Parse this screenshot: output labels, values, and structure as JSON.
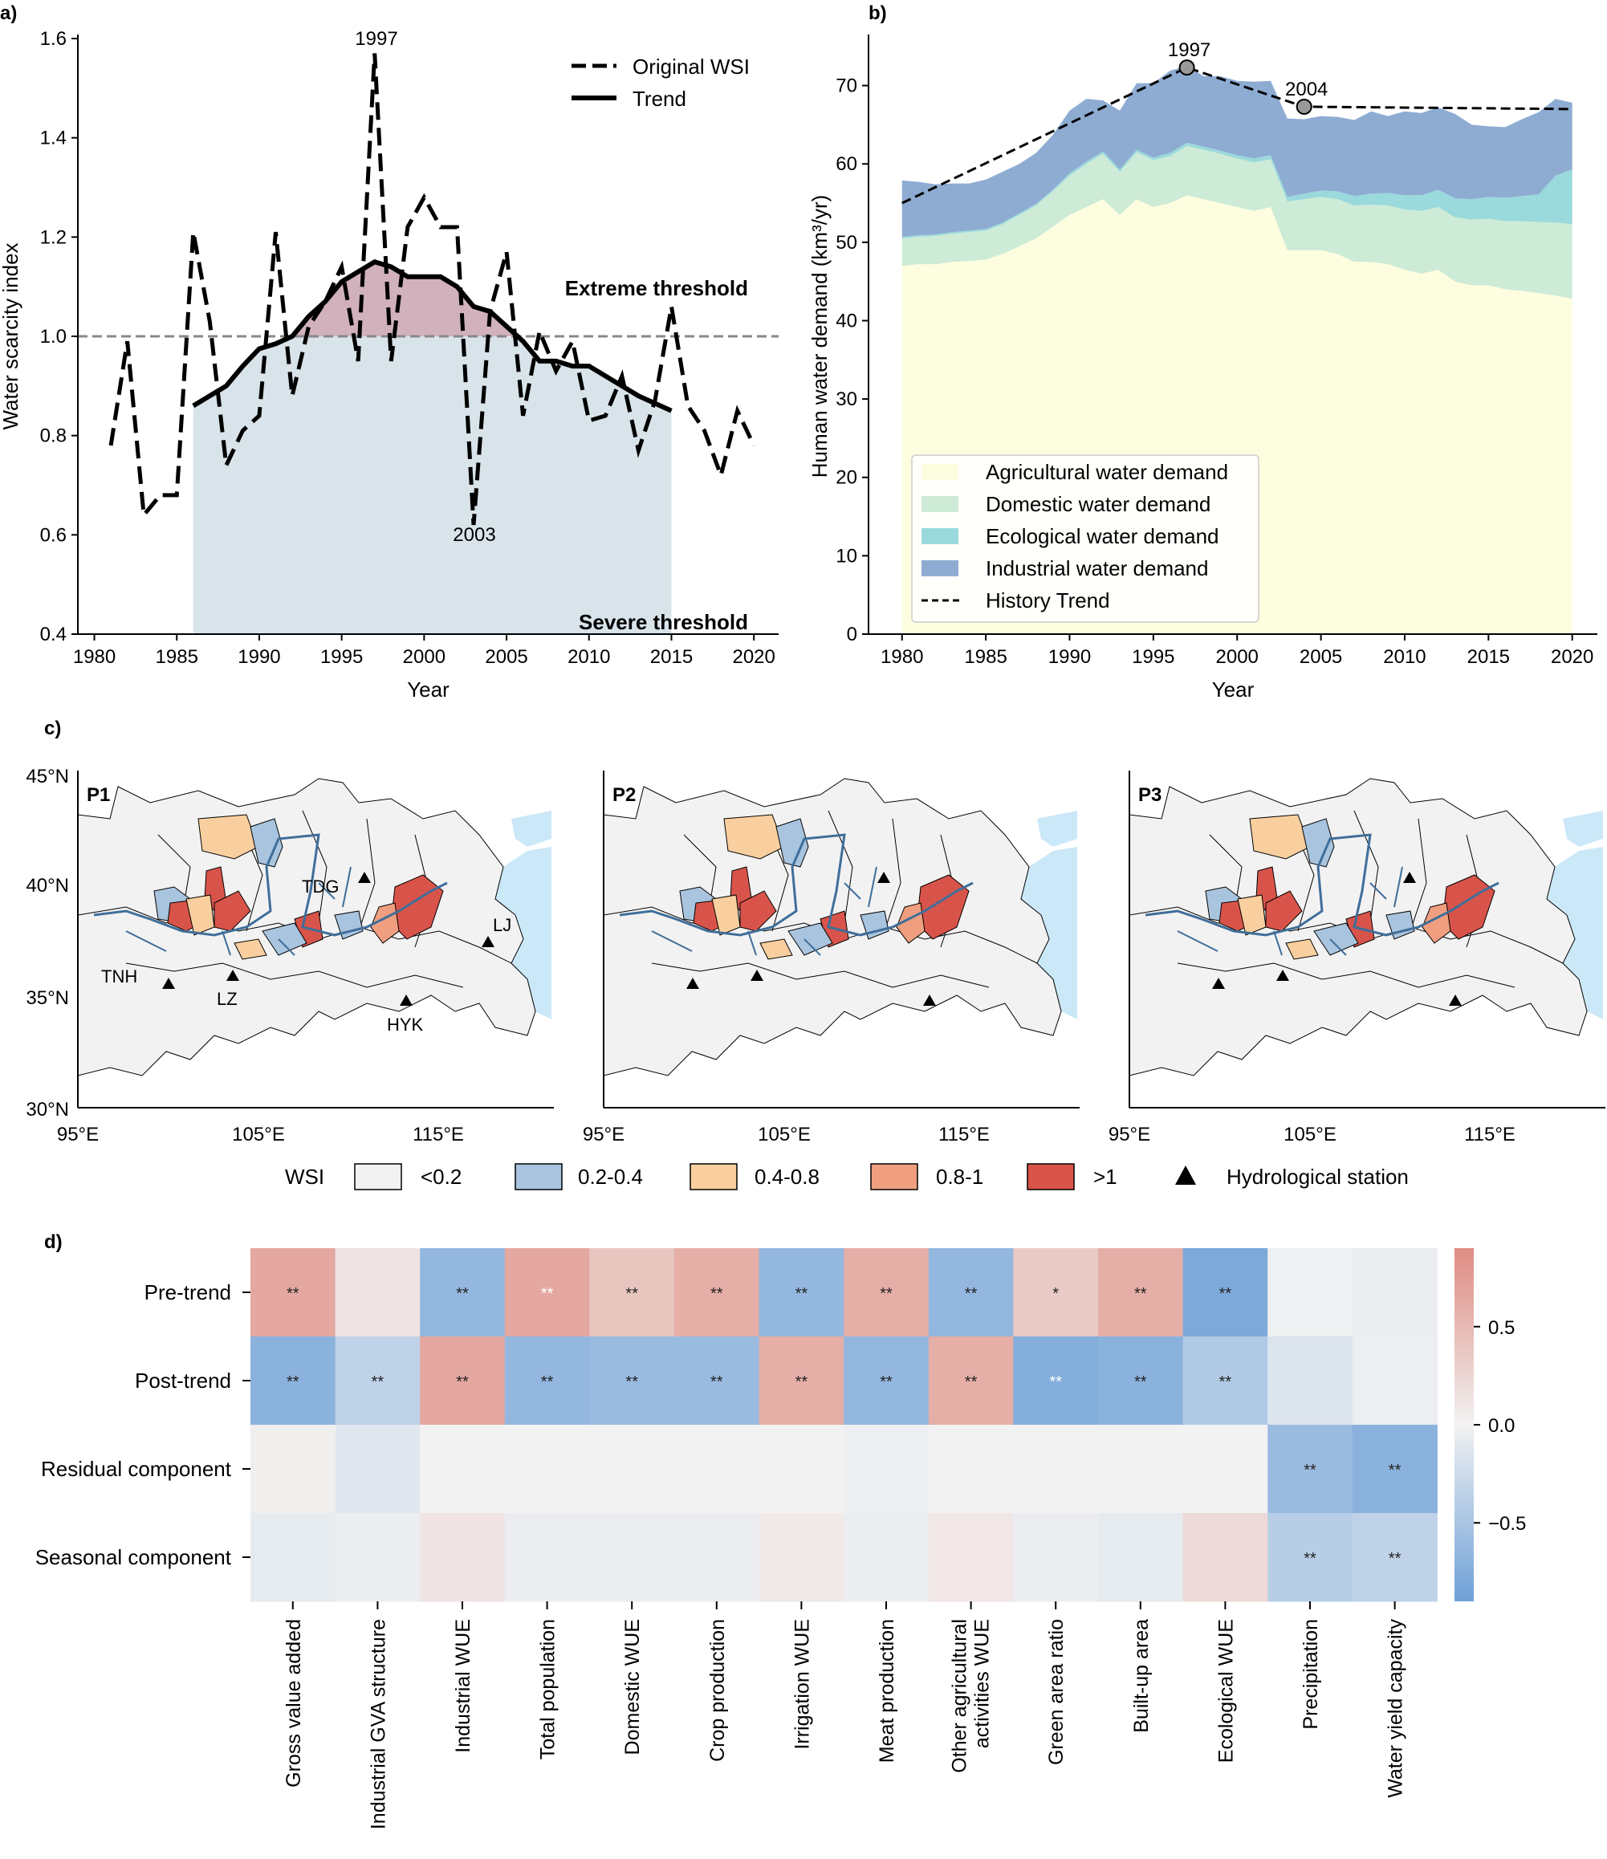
{
  "panels": {
    "a": "a)",
    "b": "b)",
    "c": "c)",
    "d": "d)"
  },
  "colors": {
    "agri": "#fdfde0",
    "domestic": "#cdebd6",
    "ecological": "#9ad9dc",
    "industrial": "#8eacd2",
    "trend_fill_above": "#d1b2bc",
    "trend_fill_below": "#d8e3ea",
    "map_low": "#f2f2f2",
    "map_02_04": "#a9c4de",
    "map_04_08": "#f9cf9f",
    "map_08_1": "#ef9f80",
    "map_gt1": "#d8544a",
    "sea": "#cbe8f8",
    "river": "#3f6e9a"
  },
  "chart_data": [
    {
      "id": "a",
      "type": "line",
      "xlabel": "Year",
      "ylabel": "Water scarcity index",
      "xlim": [
        1979,
        2021.5
      ],
      "ylim": [
        0.4,
        1.6
      ],
      "xticks": [
        1980,
        1985,
        1990,
        1995,
        2000,
        2005,
        2010,
        2015,
        2020
      ],
      "yticks": [
        "0.4",
        "0.6",
        "0.8",
        "1.0",
        "1.2",
        "1.4",
        "1.6"
      ],
      "threshold_value": 1.0,
      "threshold_labels": {
        "extreme": "Extreme threshold",
        "severe": "Severe threshold"
      },
      "annotations": [
        {
          "text": "1997",
          "x": 1997,
          "y": 1.58
        },
        {
          "text": "2003",
          "x": 2003,
          "y": 0.61
        }
      ],
      "legend": {
        "original": "Original WSI",
        "trend": "Trend"
      },
      "series": [
        {
          "name": "Original WSI",
          "x": [
            1981,
            1982,
            1983,
            1984,
            1985,
            1986,
            1987,
            1988,
            1989,
            1990,
            1991,
            1992,
            1993,
            1994,
            1995,
            1996,
            1997,
            1998,
            1999,
            2000,
            2001,
            2002,
            2003,
            2004,
            2005,
            2006,
            2007,
            2008,
            2009,
            2010,
            2011,
            2012,
            2013,
            2014,
            2015,
            2016,
            2017,
            2018,
            2019,
            2020
          ],
          "y": [
            0.78,
            0.99,
            0.64,
            0.68,
            0.68,
            1.21,
            1.03,
            0.74,
            0.81,
            0.84,
            1.21,
            0.88,
            1.02,
            1.07,
            1.14,
            0.95,
            1.57,
            0.95,
            1.22,
            1.28,
            1.22,
            1.22,
            0.62,
            1.05,
            1.17,
            0.84,
            1.01,
            0.93,
            0.99,
            0.83,
            0.84,
            0.92,
            0.77,
            0.87,
            1.06,
            0.86,
            0.81,
            0.72,
            0.85,
            0.78
          ]
        },
        {
          "name": "Trend",
          "x": [
            1986,
            1987,
            1988,
            1989,
            1990,
            1991,
            1992,
            1993,
            1994,
            1995,
            1996,
            1997,
            1998,
            1999,
            2000,
            2001,
            2002,
            2003,
            2004,
            2005,
            2006,
            2007,
            2008,
            2009,
            2010,
            2011,
            2012,
            2013,
            2014,
            2015
          ],
          "y": [
            0.86,
            0.88,
            0.9,
            0.94,
            0.975,
            0.985,
            1.0,
            1.04,
            1.07,
            1.11,
            1.13,
            1.15,
            1.14,
            1.12,
            1.12,
            1.12,
            1.1,
            1.06,
            1.05,
            1.02,
            0.99,
            0.95,
            0.95,
            0.94,
            0.94,
            0.92,
            0.9,
            0.88,
            0.865,
            0.85
          ]
        }
      ]
    },
    {
      "id": "b",
      "type": "area",
      "xlabel": "Year",
      "ylabel": "Human water demand (km³/yr)",
      "xlim": [
        1978,
        2021.5
      ],
      "ylim": [
        0,
        76
      ],
      "xticks": [
        1980,
        1985,
        1990,
        1995,
        2000,
        2005,
        2010,
        2015,
        2020
      ],
      "yticks": [
        0,
        10,
        20,
        30,
        40,
        50,
        60,
        70
      ],
      "x": [
        1980,
        1981,
        1982,
        1983,
        1984,
        1985,
        1986,
        1987,
        1988,
        1989,
        1990,
        1991,
        1992,
        1993,
        1994,
        1995,
        1996,
        1997,
        1998,
        1999,
        2000,
        2001,
        2002,
        2003,
        2004,
        2005,
        2006,
        2007,
        2008,
        2009,
        2010,
        2011,
        2012,
        2013,
        2014,
        2015,
        2016,
        2017,
        2018,
        2019,
        2020
      ],
      "series": [
        {
          "name": "Agricultural water demand",
          "values": [
            47,
            47.2,
            47.2,
            47.5,
            47.6,
            47.8,
            48.5,
            49.5,
            50.5,
            52,
            53.5,
            54.5,
            55.5,
            53.5,
            55.5,
            54.5,
            55,
            56,
            55.5,
            55,
            54.5,
            54,
            54.5,
            49,
            49,
            49,
            48.5,
            47.5,
            47.5,
            47.2,
            46.5,
            46,
            46.5,
            45,
            44.5,
            44.5,
            44,
            43.8,
            43.5,
            43.2,
            42.8
          ]
        },
        {
          "name": "Domestic water demand",
          "values": [
            3.5,
            3.5,
            3.6,
            3.6,
            3.7,
            3.7,
            3.8,
            4,
            4.2,
            4.5,
            5,
            5.5,
            5.8,
            5.5,
            6,
            6,
            6,
            6.3,
            6.3,
            6.3,
            6.2,
            6.2,
            6.1,
            6.2,
            6.5,
            6.8,
            7,
            7.2,
            7.3,
            7.5,
            7.7,
            8,
            8,
            8.2,
            8.4,
            8.5,
            8.7,
            8.9,
            9.1,
            9.3,
            9.5
          ]
        },
        {
          "name": "Ecological water demand",
          "values": [
            0.2,
            0.2,
            0.2,
            0.2,
            0.2,
            0.2,
            0.2,
            0.2,
            0.2,
            0.2,
            0.3,
            0.3,
            0.3,
            0.3,
            0.3,
            0.3,
            0.4,
            0.4,
            0.4,
            0.4,
            0.4,
            0.5,
            0.5,
            0.6,
            0.7,
            0.8,
            1,
            1.2,
            1.4,
            1.6,
            1.8,
            2,
            2.2,
            2.4,
            2.6,
            2.8,
            3,
            3.2,
            3.5,
            6,
            7
          ]
        },
        {
          "name": "Industrial water demand",
          "values": [
            7.2,
            6.8,
            6.4,
            6.2,
            6,
            6.3,
            6.5,
            6.3,
            6.5,
            7,
            8,
            8,
            6.5,
            7.5,
            8.5,
            9.5,
            10.5,
            9.8,
            9,
            9.5,
            9.5,
            9.8,
            9.5,
            10,
            9.5,
            9.5,
            9.5,
            9.7,
            10.5,
            9.8,
            10.7,
            10.5,
            10.5,
            10.8,
            9.5,
            9,
            9,
            9.8,
            10.5,
            9.8,
            8.5
          ]
        }
      ],
      "history_trend": {
        "name": "History Trend",
        "x": [
          1980,
          1997,
          2004,
          2020
        ],
        "y": [
          55,
          72.3,
          67.3,
          67
        ]
      },
      "annotations": [
        {
          "text": "1997",
          "x": 1997,
          "y": 72.3
        },
        {
          "text": "2004",
          "x": 2004,
          "y": 67.3
        }
      ]
    },
    {
      "id": "d",
      "type": "heatmap",
      "rows": [
        "Pre-trend",
        "Post-trend",
        "Residual component",
        "Seasonal component"
      ],
      "columns": [
        "Gross value added",
        "Industrial GVA structure",
        "Industrial WUE",
        "Total population",
        "Domestic WUE",
        "Crop production",
        "Irrigation WUE",
        "Meat production",
        "Other agricultural activities WUE",
        "Green area ratio",
        "Built-up area",
        "Ecological WUE",
        "Precipitation",
        "Water yield capacity"
      ],
      "values": [
        [
          0.65,
          0.12,
          -0.65,
          0.65,
          0.4,
          0.6,
          -0.65,
          0.6,
          -0.65,
          0.35,
          0.6,
          -0.8,
          -0.02,
          -0.05
        ],
        [
          -0.7,
          -0.35,
          0.65,
          -0.65,
          -0.6,
          -0.6,
          0.6,
          -0.65,
          0.6,
          -0.75,
          -0.7,
          -0.45,
          -0.15,
          -0.04
        ],
        [
          0.03,
          -0.12,
          0.0,
          0.0,
          0.0,
          0.0,
          0.0,
          -0.03,
          0.0,
          0.0,
          0.0,
          0.0,
          -0.6,
          -0.7
        ],
        [
          -0.08,
          -0.05,
          0.12,
          -0.05,
          -0.05,
          -0.05,
          0.08,
          -0.05,
          0.1,
          -0.05,
          -0.08,
          0.22,
          -0.4,
          -0.35
        ]
      ],
      "significance": [
        [
          "**",
          "",
          "**",
          "**",
          "**",
          "**",
          "**",
          "**",
          "**",
          "*",
          "**",
          "**",
          "",
          ""
        ],
        [
          "**",
          "**",
          "**",
          "**",
          "**",
          "**",
          "**",
          "**",
          "**",
          "**",
          "**",
          "**",
          "",
          ""
        ],
        [
          "",
          "",
          "",
          "",
          "",
          "",
          "",
          "",
          "",
          "",
          "",
          "",
          "**",
          "**"
        ],
        [
          "",
          "",
          "",
          "",
          "",
          "",
          "",
          "",
          "",
          "",
          "",
          "",
          "**",
          "**"
        ]
      ],
      "white_marks": [
        [
          0,
          3
        ],
        [
          1,
          9
        ]
      ],
      "colorbar": {
        "vmin": -0.9,
        "vmax": 0.9,
        "ticks": [
          "0.5",
          "0.0",
          "−0.5"
        ]
      }
    }
  ],
  "map": {
    "panels": [
      "P1",
      "P2",
      "P3"
    ],
    "lat_labels": [
      "45°N",
      "40°N",
      "35°N",
      "30°N"
    ],
    "lon_labels": [
      "95°E",
      "105°E",
      "115°E"
    ],
    "stations": [
      "TDG",
      "TNH",
      "LZ",
      "HYK",
      "LJ"
    ],
    "legend_title": "WSI",
    "legend_items": [
      "<0.2",
      "0.2-0.4",
      "0.4-0.8",
      "0.8-1",
      ">1"
    ],
    "legend_station": "Hydrological station"
  }
}
